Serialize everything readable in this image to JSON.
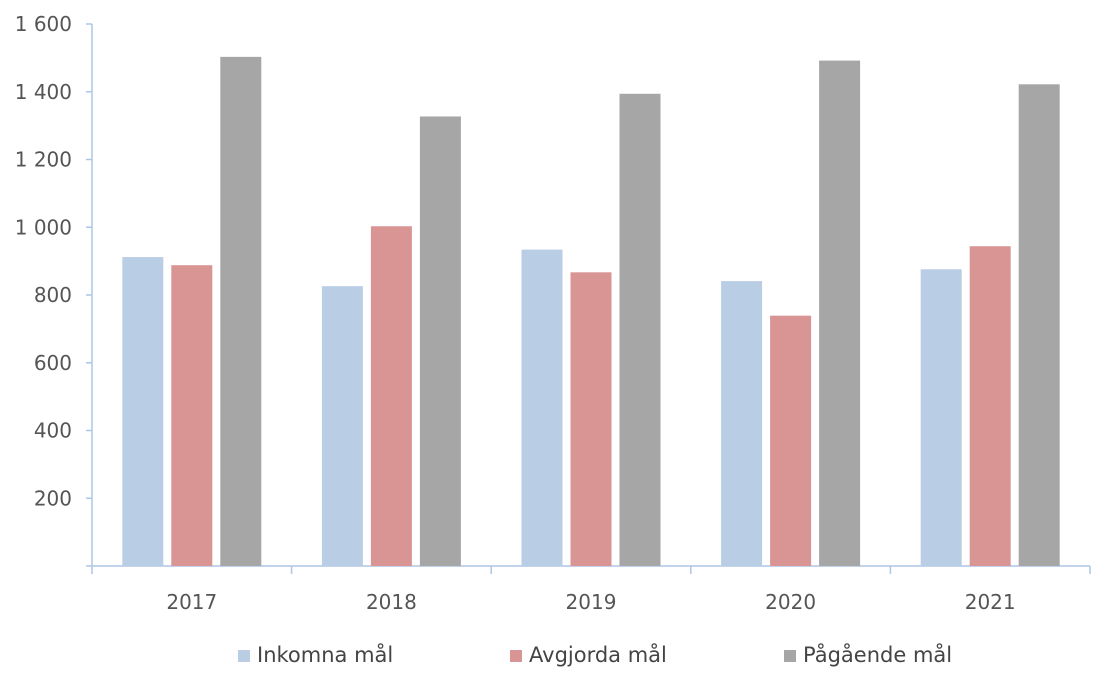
{
  "chart_data": {
    "type": "bar",
    "title": "",
    "xlabel": "",
    "ylabel": "",
    "categories": [
      "2017",
      "2018",
      "2019",
      "2020",
      "2021"
    ],
    "series": [
      {
        "name": "Inkomna mål",
        "color": "#b9cde5",
        "values": [
          912,
          826,
          934,
          841,
          876
        ]
      },
      {
        "name": "Avgjorda mål",
        "color": "#d99594",
        "values": [
          888,
          1003,
          867,
          739,
          944
        ]
      },
      {
        "name": "Pågående mål",
        "color": "#a6a6a6",
        "values": [
          1503,
          1327,
          1394,
          1492,
          1422
        ]
      }
    ],
    "ylim": [
      0,
      1600
    ],
    "yticks": [
      200,
      400,
      600,
      800,
      1000,
      1200,
      1400,
      1600
    ],
    "ytick_labels": [
      "200",
      "400",
      "600",
      "800",
      "1 000",
      "1 200",
      "1 400",
      "1 600"
    ],
    "grid": false,
    "legend_position": "bottom"
  }
}
